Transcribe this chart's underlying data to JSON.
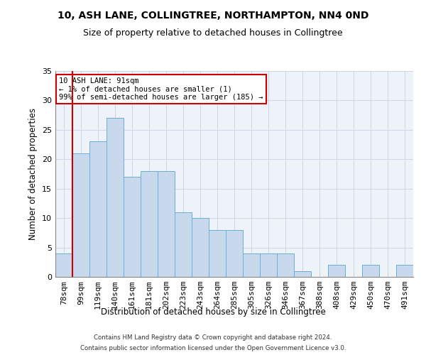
{
  "title": "10, ASH LANE, COLLINGTREE, NORTHAMPTON, NN4 0ND",
  "subtitle": "Size of property relative to detached houses in Collingtree",
  "xlabel": "Distribution of detached houses by size in Collingtree",
  "ylabel": "Number of detached properties",
  "bar_color": "#c8d9ed",
  "bar_edge_color": "#6baed6",
  "categories": [
    "78sqm",
    "99sqm",
    "119sqm",
    "140sqm",
    "161sqm",
    "181sqm",
    "202sqm",
    "223sqm",
    "243sqm",
    "264sqm",
    "285sqm",
    "305sqm",
    "326sqm",
    "346sqm",
    "367sqm",
    "388sqm",
    "408sqm",
    "429sqm",
    "450sqm",
    "470sqm",
    "491sqm"
  ],
  "values": [
    4,
    21,
    23,
    27,
    17,
    18,
    18,
    11,
    10,
    8,
    8,
    4,
    4,
    4,
    1,
    0,
    2,
    0,
    2,
    0,
    2
  ],
  "annotation_title": "10 ASH LANE: 91sqm",
  "annotation_line1": "← 1% of detached houses are smaller (1)",
  "annotation_line2": "99% of semi-detached houses are larger (185) →",
  "highlight_color": "#cc0000",
  "ylim": [
    0,
    35
  ],
  "yticks": [
    0,
    5,
    10,
    15,
    20,
    25,
    30,
    35
  ],
  "background_color": "#eef2f9",
  "grid_color": "#d0d8e8",
  "footer_line1": "Contains HM Land Registry data © Crown copyright and database right 2024.",
  "footer_line2": "Contains public sector information licensed under the Open Government Licence v3.0."
}
